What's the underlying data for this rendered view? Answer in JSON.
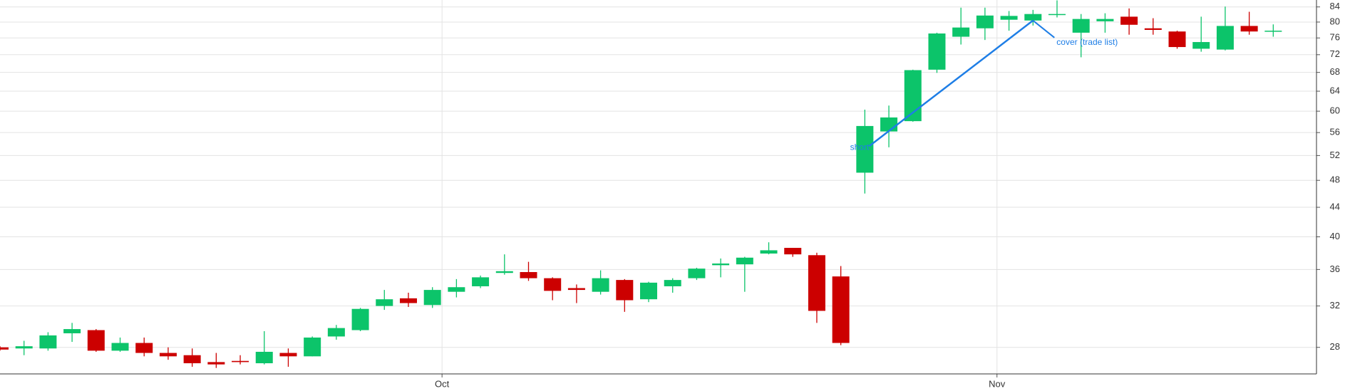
{
  "chart_data": {
    "type": "candlestick",
    "log_scale": true,
    "grid": true,
    "up_color": "#0cc46a",
    "down_color": "#cc0000",
    "annotation_color": "#1e7ee6",
    "x": [
      0,
      1,
      2,
      3,
      4,
      5,
      6,
      7,
      8,
      9,
      10,
      11,
      12,
      13,
      14,
      15,
      16,
      17,
      18,
      19,
      20,
      21,
      22,
      23,
      24,
      25,
      26,
      27,
      28,
      29,
      30,
      31,
      32,
      33,
      34,
      35,
      36,
      37,
      38,
      39,
      40,
      41,
      42,
      43,
      44,
      45,
      46,
      47,
      48,
      49,
      50,
      51,
      52,
      53
    ],
    "open": [
      28.0,
      27.9,
      27.9,
      29.3,
      29.6,
      27.7,
      28.4,
      27.5,
      27.3,
      26.7,
      26.8,
      26.6,
      27.5,
      27.2,
      29.0,
      29.6,
      32.0,
      32.8,
      32.1,
      33.5,
      34.1,
      35.6,
      35.7,
      35.0,
      33.9,
      33.5,
      34.8,
      32.7,
      34.1,
      35.0,
      36.5,
      36.6,
      37.9,
      38.6,
      37.7,
      35.2,
      49.2,
      56.2,
      58.1,
      68.6,
      76.3,
      78.4,
      80.6,
      80.4,
      81.9,
      77.3,
      80.2,
      81.4,
      78.4,
      77.6,
      73.4,
      73.2,
      79.0,
      77.6
    ],
    "high": [
      28.1,
      28.6,
      29.4,
      30.3,
      29.7,
      28.9,
      28.9,
      28.0,
      27.9,
      27.5,
      27.3,
      29.5,
      27.9,
      29.0,
      30.1,
      31.8,
      33.7,
      33.4,
      34.0,
      34.9,
      35.3,
      37.8,
      36.9,
      35.1,
      34.3,
      35.9,
      34.9,
      34.6,
      35.0,
      36.2,
      37.3,
      37.5,
      39.3,
      38.6,
      38.0,
      36.4,
      60.3,
      61.1,
      68.6,
      77.3,
      83.8,
      83.8,
      82.9,
      83.2,
      85.8,
      82.1,
      82.3,
      83.6,
      81.0,
      77.8,
      81.4,
      84.1,
      82.7,
      79.4
    ],
    "low": [
      27.7,
      27.3,
      27.7,
      28.5,
      27.6,
      27.6,
      27.2,
      26.9,
      26.3,
      26.2,
      26.5,
      26.5,
      26.3,
      27.2,
      28.7,
      29.5,
      31.6,
      31.9,
      31.8,
      32.9,
      33.9,
      35.4,
      34.7,
      32.6,
      32.3,
      33.2,
      31.4,
      32.4,
      33.4,
      34.8,
      35.1,
      33.5,
      37.8,
      37.5,
      30.3,
      28.2,
      46.0,
      53.4,
      58.0,
      67.9,
      74.4,
      75.5,
      77.8,
      79.1,
      81.2,
      71.4,
      77.3,
      76.8,
      76.8,
      73.4,
      72.7,
      73.0,
      76.8,
      76.3
    ],
    "close": [
      27.8,
      28.1,
      29.1,
      29.7,
      27.7,
      28.4,
      27.5,
      27.2,
      26.6,
      26.5,
      26.7,
      27.6,
      27.2,
      28.9,
      29.8,
      31.7,
      32.7,
      32.3,
      33.7,
      34.0,
      35.1,
      35.8,
      35.0,
      33.6,
      33.7,
      35.0,
      32.6,
      34.5,
      34.8,
      36.1,
      36.7,
      37.4,
      38.3,
      37.8,
      31.5,
      28.4,
      57.2,
      58.8,
      68.5,
      77.1,
      78.6,
      81.7,
      81.6,
      82.1,
      82.1,
      80.8,
      80.8,
      79.3,
      78.0,
      73.8,
      75.0,
      79.0,
      77.6,
      77.8
    ],
    "xlim": [
      0,
      54.8
    ],
    "xticks": [
      {
        "value": 18.4,
        "label": "Oct"
      },
      {
        "value": 41.5,
        "label": "Nov"
      }
    ],
    "ylim": [
      25.7,
      85.9
    ],
    "yticks": [
      28,
      32,
      36,
      40,
      44,
      48,
      52,
      56,
      60,
      64,
      68,
      72,
      76,
      80,
      84
    ],
    "annotations": [
      {
        "text": "short",
        "x": 36,
        "y": 53.6
      },
      {
        "text": "cover (trade list)",
        "x": 43,
        "y": 80.4
      }
    ]
  }
}
